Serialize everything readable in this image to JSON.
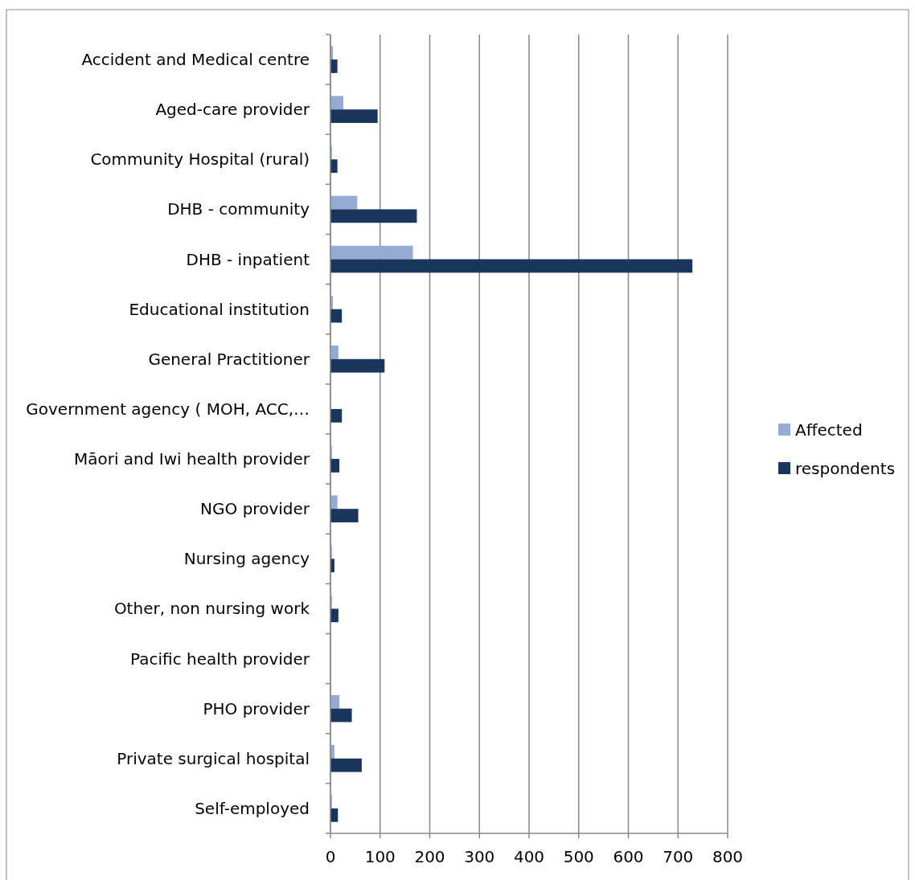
{
  "chart_data": {
    "type": "bar",
    "orientation": "horizontal",
    "categories": [
      "Accident and Medical centre",
      "Aged-care provider",
      "Community Hospital (rural)",
      "DHB - community",
      "DHB - inpatient",
      "Educational institution",
      "General Practitioner",
      "Government agency ( MOH, ACC,…",
      "Māori and Iwi health provider",
      "NGO provider",
      "Nursing agency",
      "Other, non nursing work",
      "Pacific health provider",
      "PHO provider",
      "Private surgical hospital",
      "Self-employed"
    ],
    "series": [
      {
        "name": "Affected",
        "color": "#95abd3",
        "values": [
          5,
          26,
          3,
          54,
          166,
          5,
          16,
          0,
          3,
          14,
          3,
          3,
          0,
          18,
          8,
          3
        ]
      },
      {
        "name": "respondents",
        "color": "#1b365d",
        "values": [
          14,
          95,
          14,
          174,
          729,
          23,
          109,
          23,
          18,
          56,
          8,
          16,
          0,
          43,
          63,
          15
        ]
      }
    ],
    "xlim": [
      0,
      800
    ],
    "xticks": [
      0,
      100,
      200,
      300,
      400,
      500,
      600,
      700,
      800
    ],
    "grid": "x",
    "legend": "right"
  }
}
